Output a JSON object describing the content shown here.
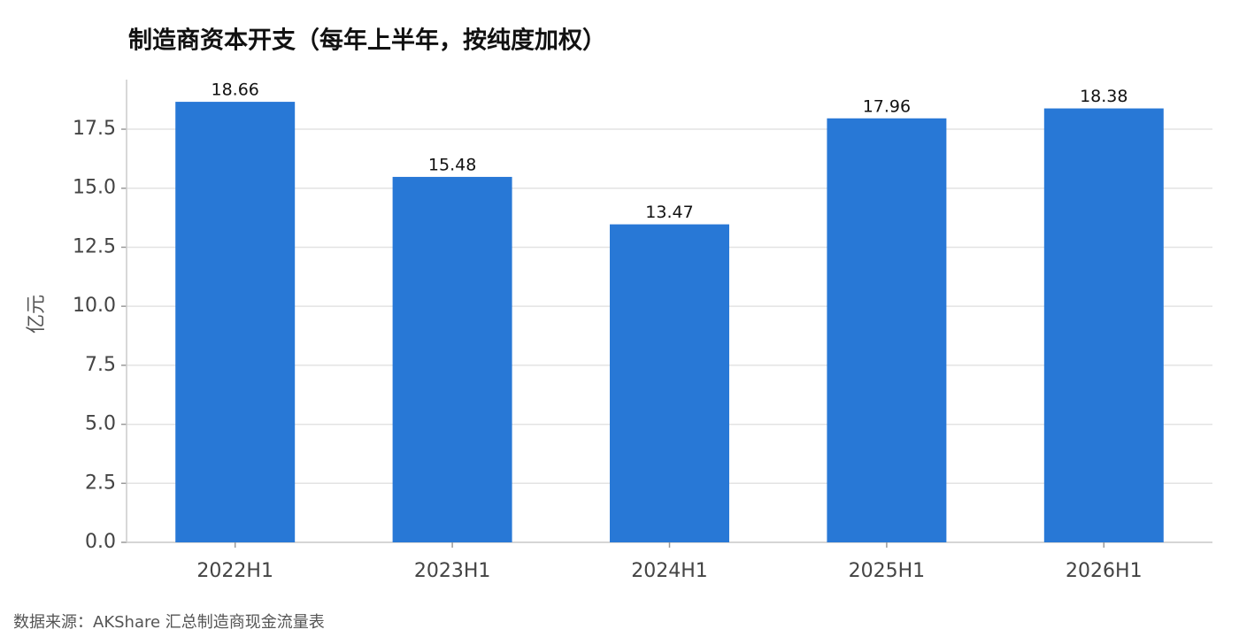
{
  "chart_data": {
    "type": "bar",
    "title": "制造商资本开支（每年上半年，按纯度加权）",
    "y_label": "亿元",
    "categories": [
      "2022H1",
      "2023H1",
      "2024H1",
      "2025H1",
      "2026H1"
    ],
    "values": [
      18.66,
      15.48,
      13.47,
      17.96,
      18.38
    ],
    "color": "#2878d6",
    "ylim": [
      0,
      19.6
    ],
    "yticks": [
      {
        "value": 0,
        "label": "0.0"
      },
      2.5,
      {
        "value": 5,
        "label": "5.0"
      },
      7.5,
      {
        "value": 10,
        "label": "10.0"
      },
      12.5,
      {
        "value": 15,
        "label": "15.0"
      },
      17.5
    ],
    "grid": true,
    "source": "数据来源：AKShare 汇总制造商现金流量表"
  }
}
